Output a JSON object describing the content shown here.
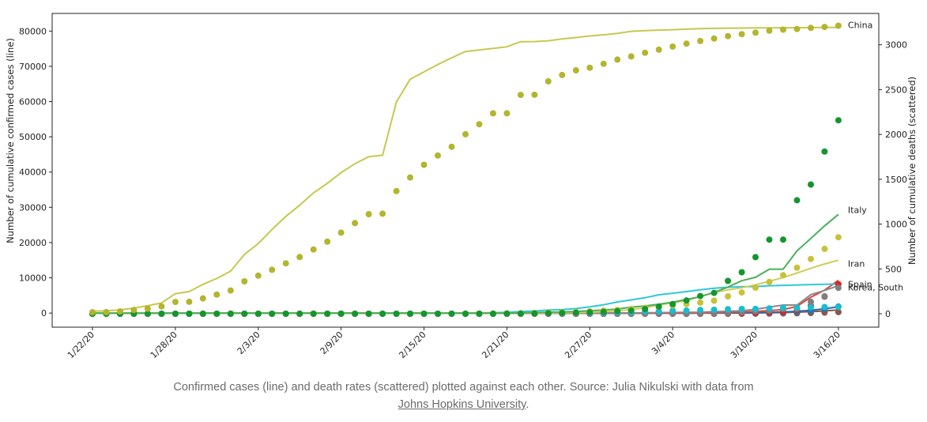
{
  "chart_data": {
    "type": "line",
    "ylabel_left": "Number of cumulative confirmed cases (line)",
    "ylabel_right": "Number of cumulative deaths (scattered)",
    "x_tick_labels": [
      "1/22/20",
      "1/28/20",
      "2/3/20",
      "2/9/20",
      "2/15/20",
      "2/21/20",
      "2/27/20",
      "3/4/20",
      "3/10/20",
      "3/16/20"
    ],
    "x_tick_days": [
      0,
      6,
      12,
      18,
      24,
      30,
      36,
      42,
      48,
      54
    ],
    "ylim_left": [
      -4000,
      85000
    ],
    "yticks_left": [
      0,
      10000,
      20000,
      30000,
      40000,
      50000,
      60000,
      70000,
      80000
    ],
    "ylim_right": [
      -150,
      3350
    ],
    "yticks_right": [
      0,
      500,
      1000,
      1500,
      2000,
      2500,
      3000
    ],
    "series": [
      {
        "name": "China",
        "color": "#c7c84e",
        "marker_color": "#b3b52e",
        "cases": [
          548,
          643,
          920,
          1406,
          2075,
          2877,
          5509,
          6087,
          8141,
          9802,
          11891,
          16630,
          19716,
          23707,
          27440,
          30587,
          34110,
          36814,
          39829,
          42354,
          44386,
          44759,
          59895,
          66358,
          68413,
          70513,
          72434,
          74211,
          74619,
          75077,
          75550,
          77001,
          77022,
          77241,
          77754,
          78166,
          78600,
          78928,
          79356,
          79932,
          80136,
          80261,
          80386,
          80537,
          80690,
          80770,
          80823,
          80860,
          80887,
          80921,
          80932,
          80945,
          80977,
          81003,
          81033
        ],
        "deaths": [
          17,
          18,
          26,
          42,
          56,
          82,
          131,
          133,
          171,
          213,
          259,
          361,
          425,
          490,
          562,
          632,
          717,
          804,
          904,
          1011,
          1111,
          1116,
          1368,
          1520,
          1662,
          1765,
          1863,
          2002,
          2114,
          2236,
          2236,
          2441,
          2443,
          2593,
          2663,
          2715,
          2744,
          2788,
          2835,
          2870,
          2912,
          2945,
          2981,
          3013,
          3042,
          3070,
          3097,
          3119,
          3136,
          3158,
          3169,
          3176,
          3189,
          3199,
          3213
        ]
      },
      {
        "name": "Italy",
        "color": "#4cb05a",
        "marker_color": "#14962e",
        "cases": [
          0,
          0,
          0,
          0,
          0,
          0,
          0,
          0,
          0,
          2,
          2,
          2,
          2,
          2,
          2,
          2,
          3,
          3,
          3,
          3,
          3,
          3,
          3,
          3,
          3,
          3,
          3,
          3,
          3,
          3,
          20,
          62,
          155,
          229,
          322,
          453,
          655,
          888,
          1128,
          1694,
          2036,
          2502,
          3089,
          3858,
          4636,
          5883,
          7375,
          9172,
          10149,
          12462,
          12462,
          17660,
          21157,
          24747,
          27980
        ],
        "deaths": [
          0,
          0,
          0,
          0,
          0,
          0,
          0,
          0,
          0,
          0,
          0,
          0,
          0,
          0,
          0,
          0,
          0,
          0,
          0,
          0,
          0,
          0,
          0,
          0,
          0,
          0,
          0,
          0,
          0,
          0,
          1,
          2,
          3,
          7,
          10,
          12,
          17,
          21,
          29,
          34,
          52,
          79,
          107,
          148,
          197,
          233,
          366,
          463,
          631,
          827,
          827,
          1266,
          1441,
          1809,
          2158
        ]
      },
      {
        "name": "Iran",
        "color": "#d2cc5a",
        "marker_color": "#c8c23a",
        "cases": [
          0,
          0,
          0,
          0,
          0,
          0,
          0,
          0,
          0,
          0,
          0,
          0,
          0,
          0,
          0,
          0,
          0,
          0,
          0,
          0,
          0,
          0,
          0,
          0,
          0,
          0,
          0,
          0,
          2,
          5,
          18,
          28,
          43,
          61,
          95,
          139,
          245,
          388,
          593,
          978,
          1501,
          2336,
          2922,
          3513,
          4747,
          5823,
          6566,
          7161,
          8042,
          9000,
          10075,
          11364,
          12729,
          13938,
          14991
        ],
        "deaths": [
          0,
          0,
          0,
          0,
          0,
          0,
          0,
          0,
          0,
          0,
          0,
          0,
          0,
          0,
          0,
          0,
          0,
          0,
          0,
          0,
          0,
          0,
          0,
          0,
          0,
          0,
          0,
          0,
          2,
          2,
          4,
          5,
          8,
          12,
          16,
          19,
          26,
          34,
          43,
          54,
          66,
          77,
          92,
          107,
          124,
          145,
          194,
          237,
          291,
          354,
          429,
          514,
          611,
          724,
          853
        ]
      },
      {
        "name": "Spain",
        "color": "#8a8a8a",
        "marker_color": "#7f7f7f",
        "cases": [
          0,
          0,
          0,
          0,
          0,
          0,
          0,
          0,
          0,
          0,
          0,
          1,
          1,
          1,
          1,
          1,
          1,
          1,
          1,
          2,
          2,
          2,
          2,
          2,
          2,
          2,
          2,
          2,
          2,
          2,
          2,
          2,
          2,
          2,
          2,
          6,
          13,
          15,
          32,
          45,
          84,
          120,
          165,
          222,
          259,
          400,
          500,
          673,
          1073,
          1695,
          2277,
          2277,
          5232,
          6391,
          7798
        ],
        "deaths": [
          0,
          0,
          0,
          0,
          0,
          0,
          0,
          0,
          0,
          0,
          0,
          0,
          0,
          0,
          0,
          0,
          0,
          0,
          0,
          0,
          0,
          0,
          0,
          0,
          0,
          0,
          0,
          0,
          0,
          0,
          0,
          0,
          0,
          0,
          0,
          0,
          0,
          0,
          0,
          0,
          0,
          0,
          1,
          2,
          3,
          5,
          10,
          17,
          28,
          35,
          54,
          55,
          133,
          195,
          289
        ]
      },
      {
        "name": "Korea, South",
        "color": "#2ec9d4",
        "marker_color": "#17becf",
        "cases": [
          1,
          1,
          2,
          2,
          3,
          4,
          4,
          4,
          4,
          11,
          12,
          15,
          15,
          16,
          19,
          23,
          24,
          24,
          25,
          27,
          28,
          28,
          28,
          28,
          28,
          29,
          30,
          31,
          31,
          104,
          204,
          433,
          602,
          833,
          977,
          1261,
          1766,
          2337,
          3150,
          3736,
          4335,
          5186,
          5621,
          6088,
          6593,
          7041,
          7314,
          7478,
          7513,
          7755,
          7869,
          7979,
          8086,
          8162,
          8236
        ],
        "deaths": [
          0,
          0,
          0,
          0,
          0,
          0,
          0,
          0,
          0,
          0,
          0,
          0,
          0,
          0,
          0,
          0,
          0,
          0,
          0,
          0,
          0,
          0,
          0,
          0,
          0,
          0,
          0,
          0,
          0,
          1,
          2,
          2,
          6,
          8,
          10,
          12,
          13,
          13,
          16,
          17,
          28,
          28,
          35,
          35,
          42,
          44,
          50,
          53,
          54,
          60,
          66,
          66,
          72,
          75,
          75
        ]
      },
      {
        "name": "",
        "color": "#e0453c",
        "marker_color": "#d62728",
        "cases": [
          0,
          0,
          0,
          0,
          0,
          0,
          0,
          0,
          0,
          0,
          0,
          0,
          0,
          0,
          0,
          0,
          0,
          0,
          0,
          0,
          0,
          0,
          0,
          0,
          0,
          0,
          0,
          0,
          0,
          0,
          0,
          0,
          0,
          0,
          0,
          0,
          0,
          0,
          0,
          0,
          0,
          0,
          10,
          20,
          60,
          120,
          200,
          300,
          450,
          700,
          1000,
          1900,
          4500,
          6500,
          9300
        ],
        "deaths": [
          0,
          0,
          0,
          0,
          0,
          0,
          0,
          0,
          0,
          0,
          0,
          0,
          0,
          0,
          0,
          0,
          0,
          0,
          0,
          0,
          0,
          0,
          0,
          0,
          0,
          0,
          0,
          0,
          0,
          0,
          0,
          0,
          0,
          0,
          0,
          0,
          0,
          0,
          0,
          0,
          0,
          0,
          0,
          0,
          1,
          2,
          4,
          6,
          10,
          15,
          20,
          40,
          90,
          190,
          330
        ]
      },
      {
        "name": "",
        "color": "#1f6fb4",
        "marker_color": "#1f77b4",
        "cases": [
          0,
          0,
          0,
          0,
          0,
          0,
          0,
          0,
          0,
          0,
          0,
          0,
          0,
          0,
          0,
          0,
          0,
          0,
          0,
          0,
          0,
          0,
          0,
          0,
          0,
          0,
          0,
          0,
          0,
          0,
          0,
          0,
          0,
          0,
          0,
          0,
          0,
          0,
          0,
          0,
          0,
          0,
          0,
          0,
          5,
          10,
          30,
          60,
          100,
          200,
          300,
          500,
          800,
          1200,
          1800
        ],
        "deaths": [
          0,
          0,
          0,
          0,
          0,
          0,
          0,
          0,
          0,
          0,
          0,
          0,
          0,
          0,
          0,
          0,
          0,
          0,
          0,
          0,
          0,
          0,
          0,
          0,
          0,
          0,
          0,
          0,
          0,
          0,
          0,
          0,
          0,
          0,
          0,
          0,
          0,
          0,
          0,
          0,
          0,
          0,
          0,
          0,
          0,
          1,
          2,
          3,
          5,
          8,
          12,
          20,
          35,
          55,
          80
        ]
      },
      {
        "name": "",
        "color": "#8c564b",
        "marker_color": "#8c564b",
        "cases": [
          0,
          0,
          0,
          0,
          0,
          0,
          0,
          0,
          0,
          0,
          0,
          0,
          0,
          0,
          0,
          0,
          0,
          0,
          0,
          0,
          0,
          0,
          0,
          0,
          0,
          0,
          0,
          0,
          0,
          0,
          0,
          0,
          0,
          0,
          0,
          0,
          0,
          0,
          0,
          0,
          0,
          0,
          0,
          0,
          0,
          5,
          10,
          20,
          40,
          80,
          150,
          250,
          400,
          600,
          900
        ],
        "deaths": [
          0,
          0,
          0,
          0,
          0,
          0,
          0,
          0,
          0,
          0,
          0,
          0,
          0,
          0,
          0,
          0,
          0,
          0,
          0,
          0,
          0,
          0,
          0,
          0,
          0,
          0,
          0,
          0,
          0,
          0,
          0,
          0,
          0,
          0,
          0,
          0,
          0,
          0,
          0,
          0,
          0,
          0,
          0,
          0,
          0,
          0,
          0,
          0,
          1,
          2,
          3,
          5,
          8,
          12,
          18
        ]
      }
    ]
  },
  "caption": {
    "text": "Confirmed cases (line) and death rates (scattered) plotted against each other. Source: Julia Nikulski with data from",
    "link_text": "Johns Hopkins University",
    "suffix": "."
  }
}
